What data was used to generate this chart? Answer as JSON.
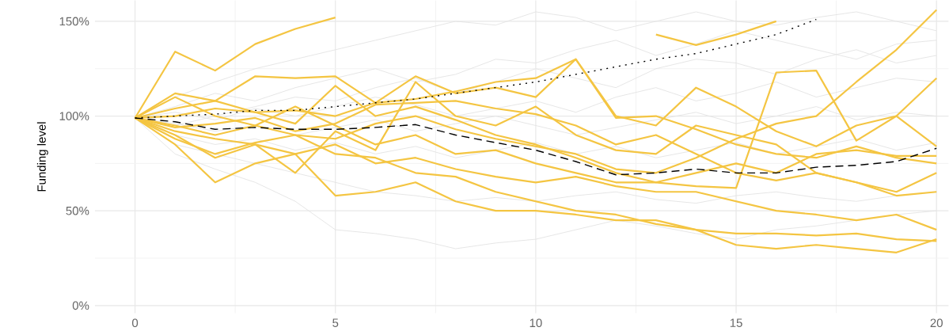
{
  "chart_data": {
    "type": "line",
    "ylabel": "Funding level",
    "grid": true,
    "x": [
      0,
      1,
      2,
      3,
      4,
      5,
      6,
      7,
      8,
      9,
      10,
      11,
      12,
      13,
      14,
      15,
      16,
      17,
      18,
      19,
      20
    ],
    "xlim": [
      -1,
      20.3
    ],
    "ylim": [
      -4,
      161
    ],
    "xticks": [
      0,
      {
        "value": 2.5,
        "label": null
      },
      5,
      {
        "value": 7.5,
        "label": null
      },
      10,
      {
        "value": 12.5,
        "label": null
      },
      15,
      {
        "value": 17.5,
        "label": null
      },
      20
    ],
    "yticks": [
      {
        "value": 0,
        "label": "0%"
      },
      {
        "value": 25,
        "label": null
      },
      {
        "value": 50,
        "label": "50%"
      },
      {
        "value": 75,
        "label": null
      },
      {
        "value": 100,
        "label": "100%"
      },
      {
        "value": 125,
        "label": null
      },
      {
        "value": 150,
        "label": "150%"
      }
    ],
    "series": [
      {
        "color": "#e3e3e3",
        "values": [
          99,
          110,
          118,
          125,
          130,
          135,
          140,
          145,
          150,
          148,
          155,
          152,
          145,
          150,
          155,
          150,
          148,
          152,
          155,
          150,
          145
        ]
      },
      {
        "color": "#e3e3e3",
        "values": [
          99,
          105,
          112,
          108,
          115,
          120,
          125,
          118,
          122,
          130,
          128,
          135,
          140,
          132,
          138,
          145,
          140,
          135,
          130,
          138,
          140
        ]
      },
      {
        "color": "#e3e3e3",
        "values": [
          99,
          95,
          100,
          105,
          110,
          108,
          115,
          120,
          112,
          118,
          125,
          120,
          115,
          125,
          130,
          128,
          122,
          130,
          135,
          128,
          132
        ]
      },
      {
        "color": "#e3e3e3",
        "values": [
          99,
          102,
          98,
          104,
          100,
          105,
          110,
          106,
          100,
          104,
          108,
          102,
          110,
          115,
          108,
          112,
          118,
          110,
          115,
          120,
          118
        ]
      },
      {
        "color": "#e3e3e3",
        "values": [
          99,
          96,
          92,
          95,
          90,
          94,
          98,
          92,
          96,
          100,
          95,
          90,
          94,
          98,
          102,
          96,
          100,
          105,
          98,
          102,
          100
        ]
      },
      {
        "color": "#e3e3e3",
        "values": [
          99,
          90,
          85,
          88,
          82,
          86,
          80,
          84,
          78,
          82,
          86,
          80,
          84,
          78,
          82,
          86,
          80,
          84,
          88,
          82,
          86
        ]
      },
      {
        "color": "#e3e3e3",
        "values": [
          99,
          85,
          80,
          75,
          70,
          65,
          60,
          58,
          55,
          57,
          55,
          58,
          60,
          56,
          54,
          58,
          60,
          57,
          55,
          58,
          60
        ]
      },
      {
        "color": "#e3e3e3",
        "values": [
          99,
          80,
          72,
          65,
          55,
          40,
          38,
          35,
          30,
          33,
          35,
          40,
          45,
          42,
          38,
          35,
          40,
          42,
          45,
          48,
          50
        ]
      },
      {
        "color": "#f4c542",
        "values": [
          99,
          134,
          124,
          138,
          146,
          152,
          null,
          null,
          null,
          null,
          null,
          null,
          null,
          143,
          137.5,
          143,
          150,
          null,
          null,
          null,
          null
        ]
      },
      {
        "color": "#f4c542",
        "values": [
          99,
          112,
          108,
          121,
          120,
          121,
          107,
          121,
          112,
          115,
          110,
          130,
          99,
          100,
          93,
          85,
          80,
          78,
          84,
          78,
          75
        ]
      },
      {
        "color": "#f4c542",
        "values": [
          99,
          88,
          80,
          86,
          90,
          88,
          96,
          100,
          93,
          88,
          84,
          80,
          72,
          70,
          78,
          88,
          96,
          100,
          118,
          135,
          156
        ]
      },
      {
        "color": "#f4c542",
        "values": [
          99,
          104,
          108,
          102,
          96,
          116,
          100,
          105,
          98,
          90,
          85,
          78,
          70,
          65,
          63,
          62,
          123,
          124,
          87,
          100,
          120
        ]
      },
      {
        "color": "#f4c542",
        "values": [
          99,
          90,
          78,
          85,
          70,
          92,
          82,
          118,
          100,
          95,
          105,
          90,
          82,
          80,
          95,
          90,
          85,
          70,
          65,
          60,
          70
        ]
      },
      {
        "color": "#f4c542",
        "values": [
          99,
          85,
          65,
          75,
          80,
          58,
          60,
          65,
          55,
          50,
          50,
          48,
          45,
          45,
          40,
          32,
          30,
          32,
          30,
          28,
          35
        ]
      },
      {
        "color": "#f4c542",
        "values": [
          99,
          95,
          90,
          95,
          90,
          80,
          78,
          70,
          68,
          60,
          55,
          50,
          48,
          43,
          40,
          38,
          38,
          37,
          38,
          35,
          34
        ]
      },
      {
        "color": "#f4c542",
        "values": [
          99,
          110,
          100,
          95,
          105,
          95,
          85,
          90,
          80,
          82,
          75,
          70,
          65,
          65,
          70,
          75,
          70,
          80,
          82,
          79,
          79
        ]
      },
      {
        "color": "#f4c542",
        "values": [
          99,
          92,
          88,
          85,
          80,
          85,
          75,
          78,
          72,
          68,
          65,
          68,
          63,
          60,
          60,
          55,
          50,
          48,
          45,
          48,
          40
        ]
      },
      {
        "color": "#f4c542",
        "values": [
          99,
          94,
          96,
          99,
          92,
          96,
          106,
          107,
          108,
          104,
          101,
          95,
          85,
          90,
          80,
          70,
          66,
          70,
          65,
          58,
          60
        ]
      },
      {
        "color": "#f4c542",
        "values": [
          99,
          100,
          104,
          102,
          103,
          100,
          107,
          109,
          113,
          118,
          120,
          130,
          100,
          95,
          115,
          105,
          92,
          84,
          95,
          100,
          84
        ]
      },
      {
        "color": "#000000",
        "line_style": "dashed",
        "values": [
          99,
          97,
          93,
          94,
          93,
          93,
          94,
          95.5,
          90,
          86,
          82,
          76,
          69,
          70,
          72,
          70,
          70,
          73,
          74,
          76,
          83
        ]
      },
      {
        "color": "#000000",
        "line_style": "dotted",
        "values": [
          99,
          100,
          101,
          103,
          103,
          105,
          107,
          109,
          112,
          115,
          118,
          122,
          126,
          130,
          133,
          138,
          143,
          151,
          null,
          null,
          null
        ]
      }
    ]
  }
}
